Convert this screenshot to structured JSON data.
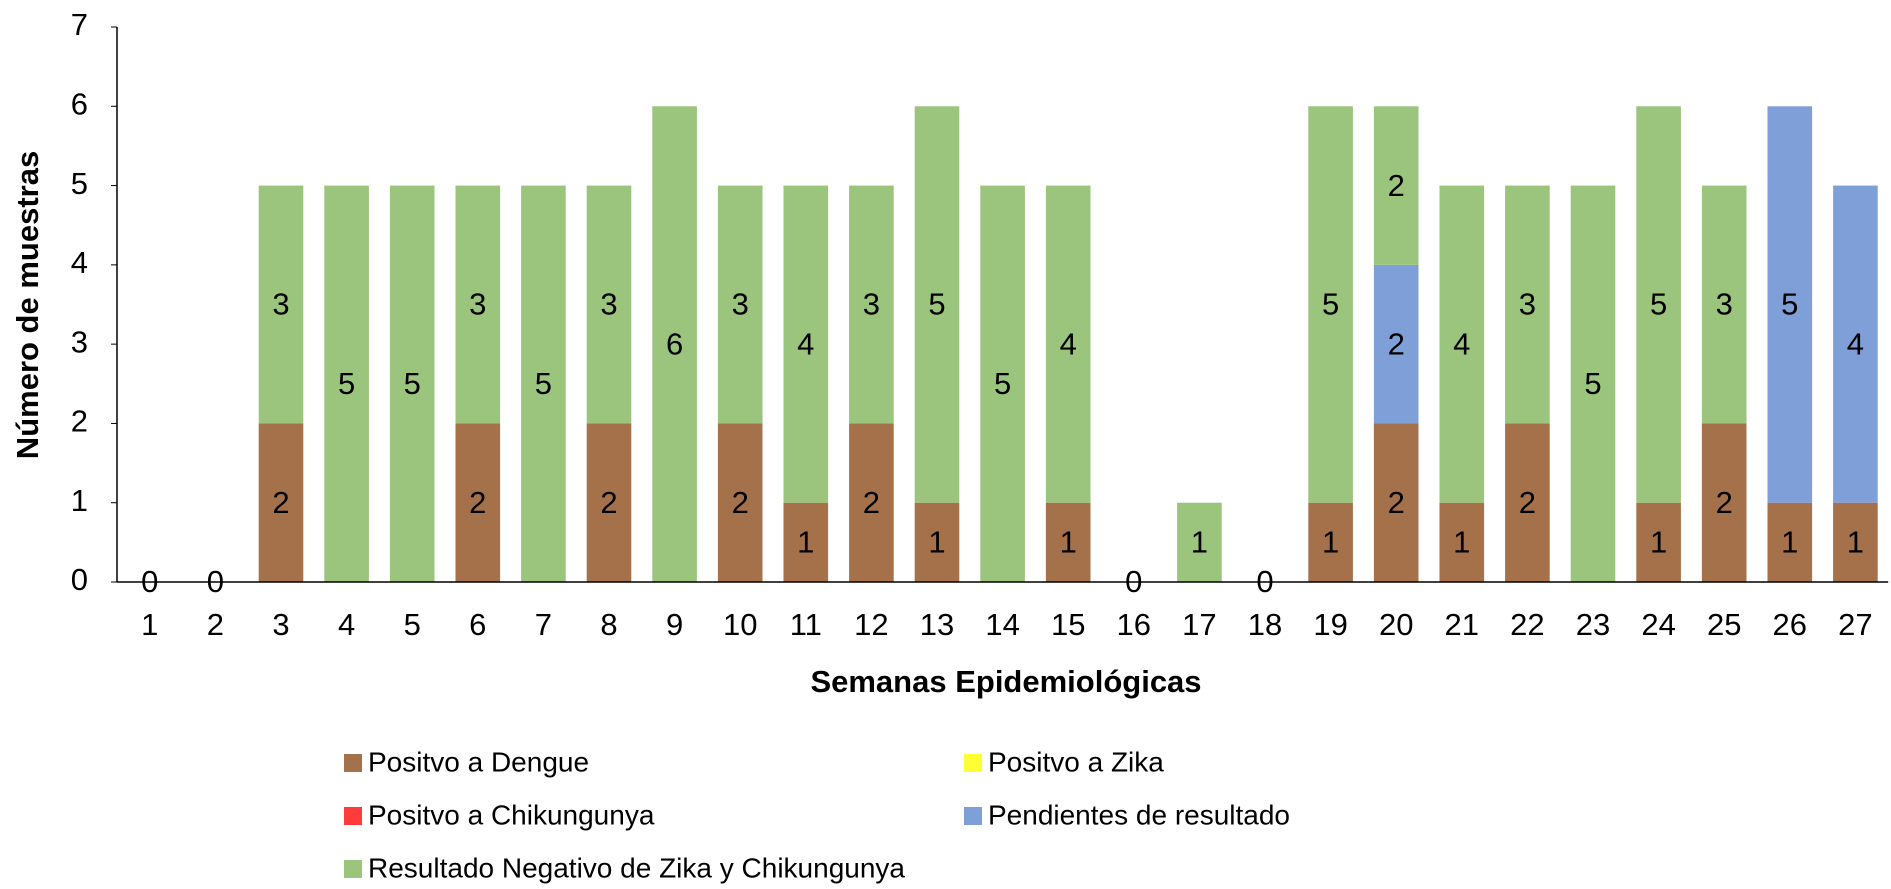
{
  "chart_data": {
    "type": "bar",
    "stacked": true,
    "x_label": "Semanas Epidemiológicas",
    "y_label": "Número de muestras",
    "categories": [
      "1",
      "2",
      "3",
      "4",
      "5",
      "6",
      "7",
      "8",
      "9",
      "10",
      "11",
      "12",
      "13",
      "14",
      "15",
      "16",
      "17",
      "18",
      "19",
      "20",
      "21",
      "22",
      "23",
      "24",
      "25",
      "26",
      "27"
    ],
    "series": [
      {
        "name": "Positvo a Dengue",
        "color": "#a5714a",
        "values": [
          null,
          null,
          2,
          null,
          null,
          2,
          null,
          2,
          null,
          2,
          1,
          2,
          1,
          null,
          1,
          null,
          null,
          null,
          1,
          2,
          1,
          2,
          null,
          1,
          2,
          1,
          1
        ]
      },
      {
        "name": "Positvo a  Zika",
        "color": "#ffff33",
        "values": [
          null,
          null,
          null,
          null,
          null,
          null,
          null,
          null,
          null,
          null,
          null,
          null,
          null,
          null,
          null,
          null,
          null,
          null,
          null,
          null,
          null,
          null,
          null,
          null,
          null,
          null,
          null
        ]
      },
      {
        "name": "Positvo a Chikungunya",
        "color": "#ff3b3b",
        "values": [
          null,
          null,
          null,
          null,
          null,
          null,
          null,
          null,
          null,
          null,
          null,
          null,
          null,
          null,
          null,
          null,
          null,
          null,
          null,
          null,
          null,
          null,
          null,
          null,
          null,
          null,
          null
        ]
      },
      {
        "name": "Pendientes de resultado",
        "color": "#7f9fd8",
        "values": [
          null,
          null,
          null,
          null,
          null,
          null,
          null,
          null,
          null,
          null,
          null,
          null,
          null,
          null,
          null,
          null,
          null,
          null,
          null,
          2,
          null,
          null,
          null,
          null,
          null,
          5,
          4
        ]
      },
      {
        "name": "Resultado Negativo de Zika y Chikungunya",
        "color": "#9bc47d",
        "values": [
          0,
          0,
          3,
          5,
          5,
          3,
          5,
          3,
          6,
          3,
          4,
          3,
          5,
          5,
          4,
          0,
          1,
          0,
          5,
          2,
          4,
          3,
          5,
          5,
          3,
          null,
          null
        ]
      }
    ],
    "ylim": [
      0,
      7
    ],
    "yticks": [
      0,
      1,
      2,
      3,
      4,
      5,
      6,
      7
    ]
  }
}
